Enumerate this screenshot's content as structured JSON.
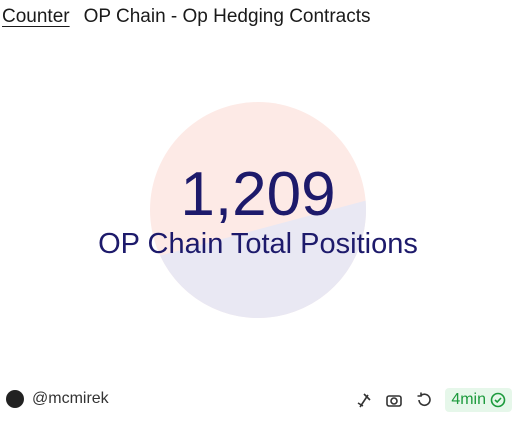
{
  "header": {
    "tab": "Counter",
    "title": "OP Chain - Op Hedging Contracts"
  },
  "counter": {
    "value": "1,209",
    "label": "OP Chain Total Positions"
  },
  "footer": {
    "author": "@mcmirek",
    "age": "4min"
  }
}
